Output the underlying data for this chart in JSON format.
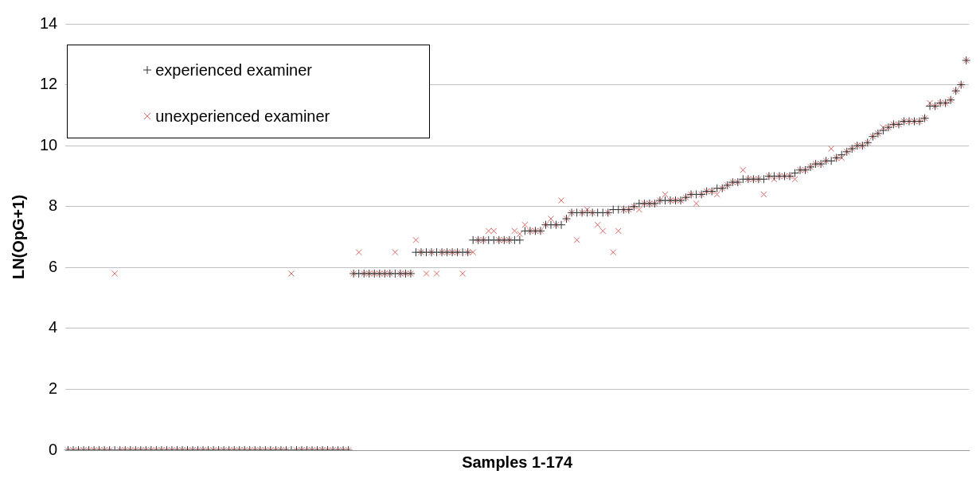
{
  "chart_data": {
    "type": "scatter",
    "xlabel": "Samples 1-174",
    "ylabel": "LN(OpG+1)",
    "categories": [
      null,
      null,
      null,
      null,
      null,
      null,
      null,
      null,
      null,
      null,
      null,
      null,
      null,
      null,
      null,
      null,
      null,
      null,
      null,
      null,
      null,
      null,
      null,
      null,
      null,
      null,
      null,
      null,
      null,
      null,
      null,
      null,
      null,
      null,
      null,
      null,
      null,
      null,
      null,
      null,
      null,
      null,
      null,
      null,
      null,
      null,
      null,
      null,
      null,
      null,
      null,
      null,
      null,
      null,
      null,
      null,
      null,
      null,
      null,
      null,
      null,
      null,
      null,
      null,
      null,
      null,
      null,
      null,
      null,
      null,
      null,
      null,
      null,
      null,
      null,
      null,
      null,
      null,
      null,
      null,
      null,
      null,
      null,
      null,
      null,
      null,
      null,
      null,
      null,
      null,
      null,
      null,
      null,
      null,
      null,
      null,
      null,
      null,
      null,
      null,
      null,
      null,
      null,
      null,
      null,
      null,
      null,
      null,
      null,
      null,
      null,
      null,
      null,
      null,
      null,
      null,
      null,
      null,
      null,
      null,
      null,
      null,
      null,
      null,
      null,
      null,
      null,
      null,
      null,
      null,
      null,
      null,
      null,
      null,
      null,
      null,
      null,
      null,
      null,
      null,
      null,
      null,
      null,
      null,
      null,
      null,
      null,
      null,
      null,
      null,
      null,
      null,
      null,
      null,
      null,
      null,
      null,
      null,
      null,
      null,
      null,
      null,
      null,
      null,
      null,
      null,
      null,
      null,
      null,
      null,
      null,
      null,
      null,
      null
    ],
    "series": [
      {
        "name": "experienced examiner",
        "color": "#333333",
        "marker": "plus",
        "values": [
          0,
          0,
          0,
          0,
          0,
          0,
          0,
          0,
          0,
          0,
          0,
          0,
          0,
          0,
          0,
          0,
          0,
          0,
          0,
          0,
          0,
          0,
          0,
          0,
          0,
          0,
          0,
          0,
          0,
          0,
          0,
          0,
          0,
          0,
          0,
          0,
          0,
          0,
          0,
          0,
          0,
          0,
          0,
          0,
          0,
          0,
          0,
          0,
          0,
          0,
          0,
          0,
          0,
          0,
          0,
          5.8,
          5.8,
          5.8,
          5.8,
          5.8,
          5.8,
          5.8,
          5.8,
          5.8,
          5.8,
          5.8,
          5.8,
          6.5,
          6.5,
          6.5,
          6.5,
          6.5,
          6.5,
          6.5,
          6.5,
          6.5,
          6.5,
          6.5,
          6.9,
          6.9,
          6.9,
          6.9,
          6.9,
          6.9,
          6.9,
          6.9,
          6.9,
          6.9,
          7.2,
          7.2,
          7.2,
          7.2,
          7.4,
          7.4,
          7.4,
          7.4,
          7.6,
          7.8,
          7.8,
          7.8,
          7.8,
          7.8,
          7.8,
          7.8,
          7.8,
          7.9,
          7.9,
          7.9,
          7.9,
          8.0,
          8.1,
          8.1,
          8.1,
          8.1,
          8.2,
          8.2,
          8.2,
          8.2,
          8.2,
          8.3,
          8.4,
          8.4,
          8.4,
          8.5,
          8.5,
          8.6,
          8.6,
          8.7,
          8.8,
          8.8,
          8.9,
          8.9,
          8.9,
          8.9,
          8.9,
          9.0,
          9.0,
          9.0,
          9.0,
          9.0,
          9.1,
          9.2,
          9.2,
          9.3,
          9.4,
          9.4,
          9.5,
          9.5,
          9.6,
          9.7,
          9.8,
          9.9,
          10.0,
          10.0,
          10.1,
          10.3,
          10.4,
          10.5,
          10.6,
          10.7,
          10.7,
          10.8,
          10.8,
          10.8,
          10.8,
          10.9,
          11.3,
          11.3,
          11.4,
          11.4,
          11.5,
          11.8,
          12.0,
          12.8
        ]
      },
      {
        "name": "unexperienced examiner",
        "color": "#e06666",
        "marker": "cross",
        "values": [
          0,
          0,
          0,
          0,
          0,
          0,
          0,
          0,
          0,
          5.8,
          0,
          0,
          0,
          0,
          0,
          0,
          0,
          0,
          0,
          0,
          0,
          0,
          0,
          0,
          0,
          0,
          0,
          0,
          0,
          0,
          0,
          0,
          0,
          0,
          0,
          0,
          0,
          0,
          0,
          0,
          0,
          0,
          0,
          5.8,
          0,
          0,
          0,
          0,
          0,
          0,
          0,
          0,
          0,
          0,
          0,
          5.8,
          6.5,
          5.8,
          5.8,
          5.8,
          5.8,
          5.8,
          5.8,
          6.5,
          5.8,
          5.8,
          5.8,
          6.9,
          6.5,
          5.8,
          6.5,
          5.8,
          6.5,
          6.5,
          6.5,
          6.5,
          5.8,
          6.5,
          6.5,
          6.9,
          6.9,
          7.2,
          7.2,
          6.9,
          6.9,
          6.9,
          7.2,
          7.1,
          7.4,
          7.2,
          7.2,
          7.2,
          7.4,
          7.6,
          7.4,
          8.2,
          7.6,
          7.8,
          6.9,
          7.8,
          7.9,
          7.8,
          7.4,
          7.2,
          7.8,
          6.5,
          7.2,
          7.9,
          7.9,
          8.0,
          7.9,
          8.1,
          8.1,
          8.1,
          8.2,
          8.4,
          8.2,
          8.2,
          8.2,
          8.3,
          8.4,
          8.1,
          8.4,
          8.5,
          8.5,
          8.4,
          8.6,
          8.7,
          8.8,
          8.8,
          9.2,
          8.9,
          8.9,
          8.9,
          8.4,
          9.0,
          8.9,
          9.0,
          9.0,
          9.0,
          8.9,
          9.2,
          9.2,
          9.3,
          9.4,
          9.4,
          9.5,
          9.9,
          9.6,
          9.6,
          9.8,
          9.9,
          10.0,
          10.0,
          10.1,
          10.3,
          10.4,
          10.6,
          10.6,
          10.7,
          10.7,
          10.8,
          10.8,
          10.8,
          10.8,
          10.9,
          11.4,
          11.3,
          11.4,
          11.4,
          11.5,
          11.8,
          12.0,
          12.8
        ]
      }
    ],
    "ylim": [
      0,
      14
    ],
    "yticks": [
      0,
      2,
      4,
      6,
      8,
      10,
      12,
      14
    ],
    "grid": "y",
    "tick_labels": "y",
    "legend": "top left"
  }
}
